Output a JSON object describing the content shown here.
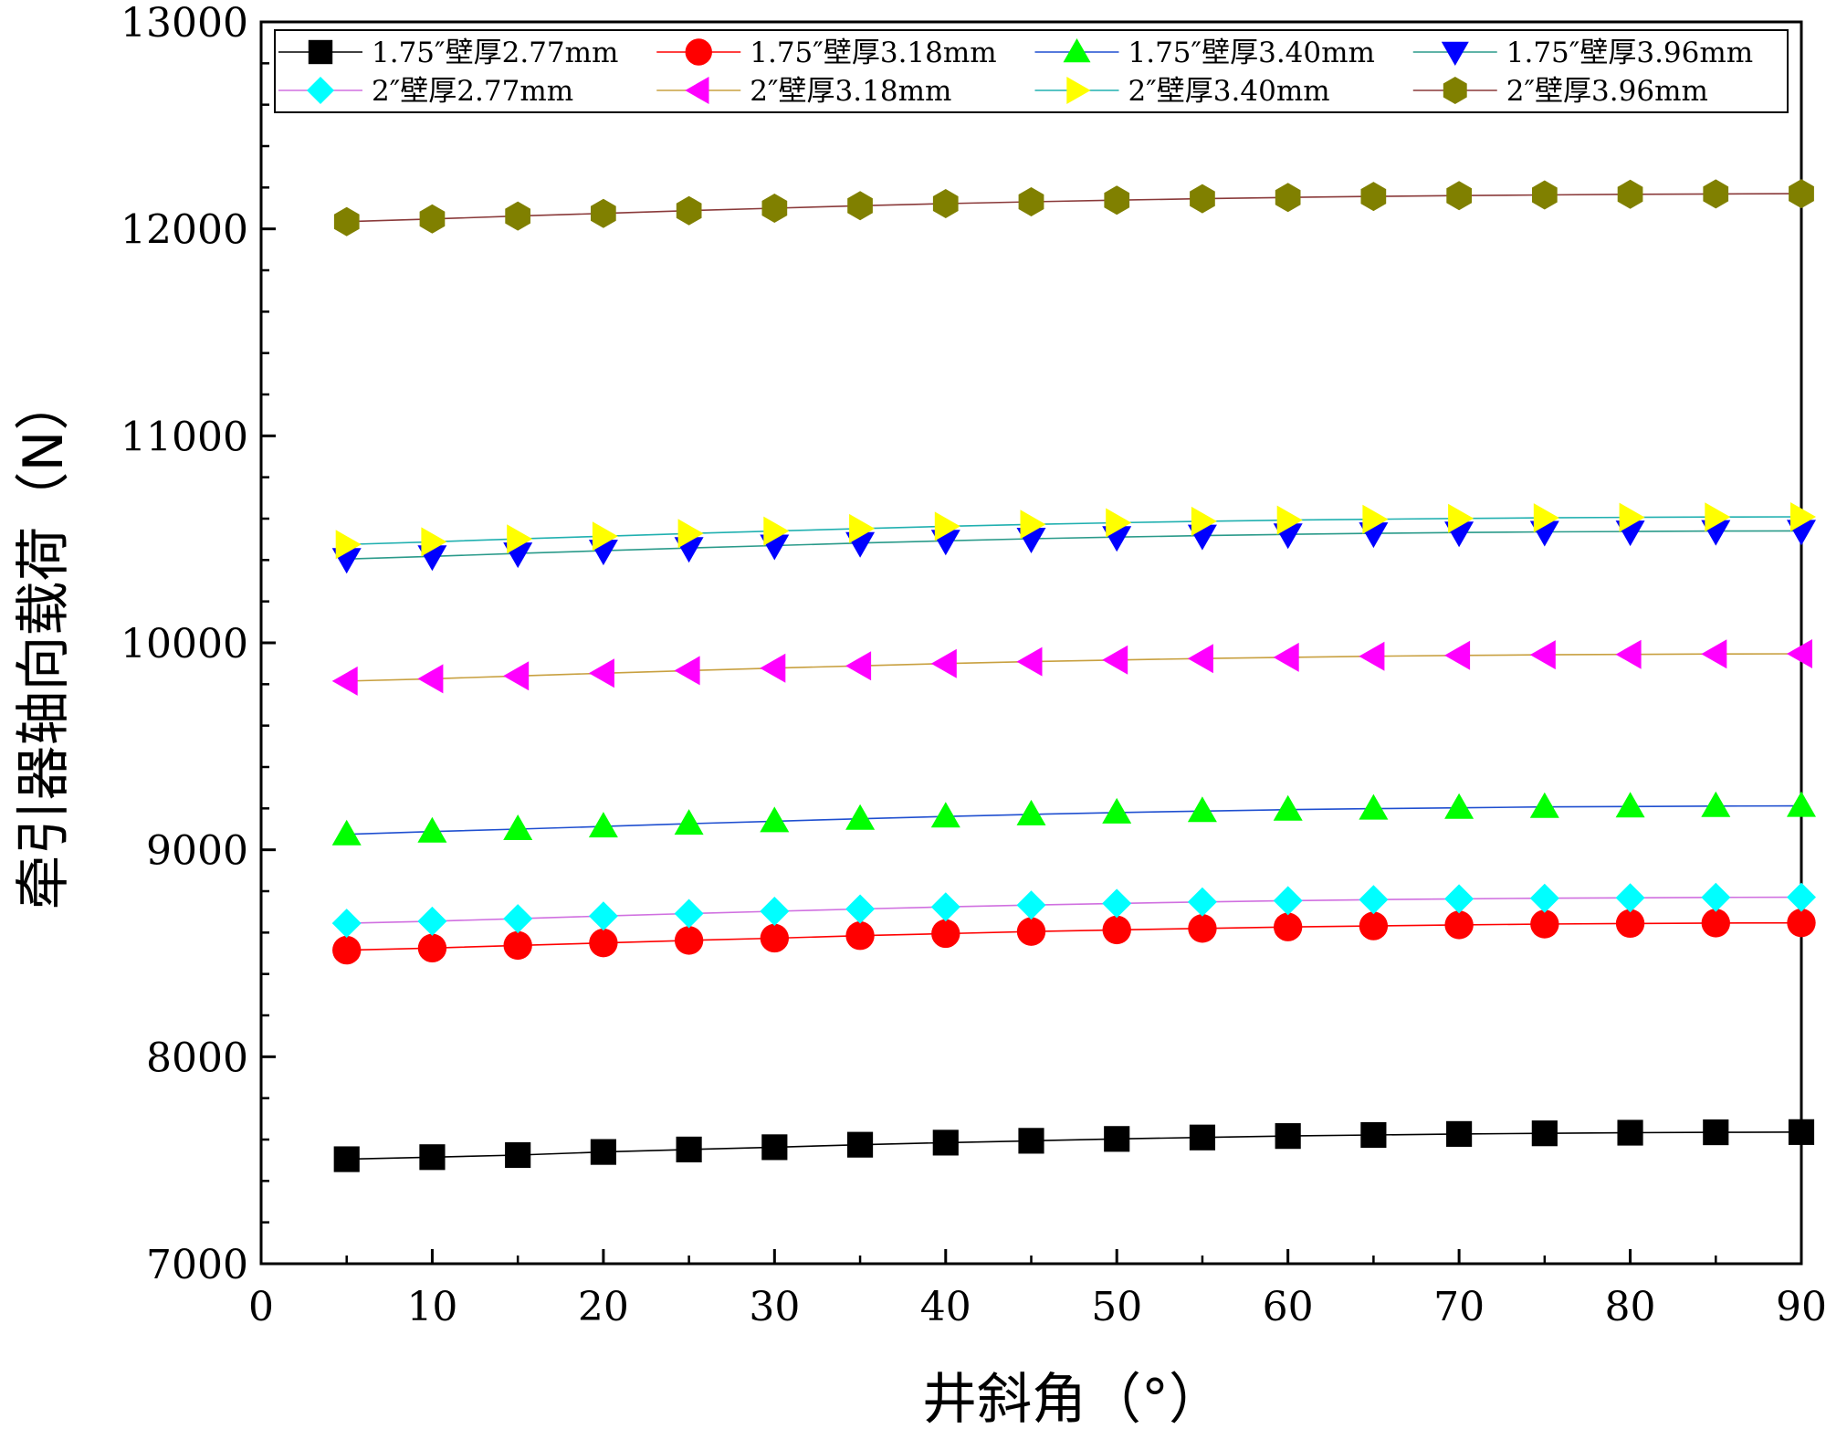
{
  "chart_data": {
    "type": "line",
    "xlabel": "井斜角（°）",
    "ylabel": "牵引器轴向载荷（N）",
    "xlim": [
      0,
      90
    ],
    "ylim": [
      7000,
      13000
    ],
    "x_ticks": [
      0,
      10,
      20,
      30,
      40,
      50,
      60,
      70,
      80,
      90
    ],
    "y_ticks": [
      7000,
      8000,
      9000,
      10000,
      11000,
      12000,
      13000
    ],
    "grid": false,
    "legend_position": "top",
    "x": [
      5,
      10,
      15,
      20,
      25,
      30,
      35,
      40,
      45,
      50,
      55,
      60,
      65,
      70,
      75,
      80,
      85,
      90
    ],
    "series": [
      {
        "name": "1.75″壁厚2.77mm",
        "color": "#000000",
        "line_color": "#000000",
        "marker": "square",
        "values": [
          7505,
          7515,
          7525,
          7540,
          7552,
          7563,
          7575,
          7585,
          7594,
          7603,
          7610,
          7617,
          7622,
          7627,
          7630,
          7633,
          7635,
          7636
        ]
      },
      {
        "name": "1.75″壁厚3.18mm",
        "color": "#ff0000",
        "line_color": "#ff0000",
        "marker": "circle",
        "values": [
          8515,
          8525,
          8538,
          8550,
          8562,
          8573,
          8585,
          8595,
          8605,
          8613,
          8620,
          8627,
          8632,
          8637,
          8641,
          8644,
          8646,
          8647
        ]
      },
      {
        "name": "1.75″壁厚3.40mm",
        "color": "#00ff00",
        "line_color": "#1f4fd0",
        "marker": "triangle-up",
        "values": [
          9075,
          9088,
          9100,
          9113,
          9126,
          9138,
          9150,
          9161,
          9171,
          9180,
          9187,
          9194,
          9199,
          9203,
          9207,
          9209,
          9211,
          9212
        ]
      },
      {
        "name": "1.75″壁厚3.96mm",
        "color": "#0000ff",
        "line_color": "#2a9a8a",
        "marker": "triangle-down",
        "values": [
          10405,
          10418,
          10432,
          10445,
          10458,
          10470,
          10482,
          10493,
          10503,
          10511,
          10518,
          10524,
          10529,
          10533,
          10536,
          10538,
          10540,
          10541
        ]
      },
      {
        "name": "2″壁厚2.77mm",
        "color": "#00ffff",
        "line_color": "#d070e0",
        "marker": "diamond",
        "values": [
          8645,
          8655,
          8667,
          8680,
          8692,
          8703,
          8714,
          8724,
          8733,
          8741,
          8748,
          8754,
          8759,
          8763,
          8766,
          8768,
          8770,
          8771
        ]
      },
      {
        "name": "2″壁厚3.18mm",
        "color": "#ff00ff",
        "line_color": "#c8a040",
        "marker": "triangle-left",
        "values": [
          9815,
          9826,
          9840,
          9853,
          9866,
          9878,
          9889,
          9900,
          9909,
          9917,
          9924,
          9930,
          9935,
          9939,
          9942,
          9944,
          9946,
          9947
        ]
      },
      {
        "name": "2″壁厚3.40mm",
        "color": "#ffff00",
        "line_color": "#20b0b0",
        "marker": "triangle-right",
        "values": [
          10475,
          10488,
          10502,
          10515,
          10528,
          10540,
          10552,
          10563,
          10572,
          10580,
          10587,
          10593,
          10597,
          10601,
          10604,
          10606,
          10608,
          10609
        ]
      },
      {
        "name": "2″壁厚3.96mm",
        "color": "#808000",
        "line_color": "#8a3a3a",
        "marker": "hexagon",
        "values": [
          12035,
          12048,
          12062,
          12075,
          12088,
          12100,
          12112,
          12122,
          12131,
          12139,
          12146,
          12152,
          12157,
          12161,
          12164,
          12167,
          12169,
          12170
        ]
      }
    ]
  }
}
